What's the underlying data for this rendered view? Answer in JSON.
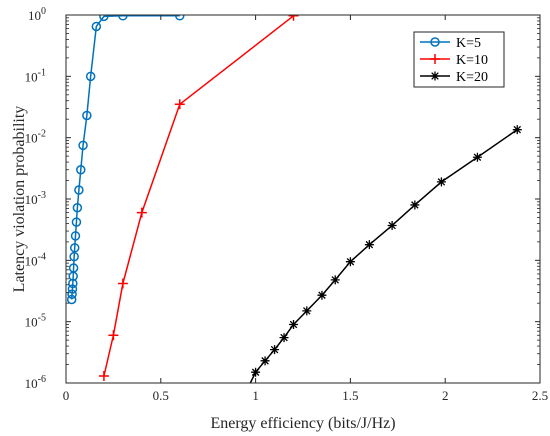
{
  "chart_data": {
    "type": "line",
    "title": "",
    "xlabel": "Energy efficiency (bits/J/Hz)",
    "ylabel": "Latency violation probability",
    "xlim": [
      0,
      2.5
    ],
    "ylim": [
      1e-06,
      1
    ],
    "yscale": "log",
    "grid": false,
    "legend_position": "top-right",
    "x_ticks": [
      {
        "value": 0,
        "label": "0"
      },
      {
        "value": 0.5,
        "label": "0.5"
      },
      {
        "value": 1,
        "label": "1"
      },
      {
        "value": 1.5,
        "label": "1.5"
      },
      {
        "value": 2,
        "label": "2"
      },
      {
        "value": 2.5,
        "label": "2.5"
      }
    ],
    "y_ticks": [
      {
        "value": 1e-06,
        "base": "10",
        "exp": "-6"
      },
      {
        "value": 1e-05,
        "base": "10",
        "exp": "-5"
      },
      {
        "value": 0.0001,
        "base": "10",
        "exp": "-4"
      },
      {
        "value": 0.001,
        "base": "10",
        "exp": "-3"
      },
      {
        "value": 0.01,
        "base": "10",
        "exp": "-2"
      },
      {
        "value": 0.1,
        "base": "10",
        "exp": "-1"
      },
      {
        "value": 1,
        "base": "10",
        "exp": "0"
      }
    ],
    "series": [
      {
        "name": "K=5",
        "color": "#0072BD",
        "marker": "circle",
        "x": [
          0.03,
          0.032,
          0.034,
          0.036,
          0.038,
          0.04,
          0.043,
          0.046,
          0.05,
          0.055,
          0.06,
          0.068,
          0.078,
          0.09,
          0.11,
          0.13,
          0.16,
          0.2,
          0.3,
          0.6
        ],
        "y": [
          2.3e-05,
          2.8e-05,
          3.4e-05,
          4.2e-05,
          5.5e-05,
          7.5e-05,
          0.000115,
          0.00016,
          0.00025,
          0.00042,
          0.00072,
          0.0014,
          0.003,
          0.0075,
          0.023,
          0.1,
          0.65,
          0.95,
          0.97,
          0.97
        ]
      },
      {
        "name": "K=10",
        "color": "#FF0000",
        "marker": "plus",
        "x": [
          0.2,
          0.25,
          0.3,
          0.4,
          0.6,
          1.2
        ],
        "y": [
          1.3e-06,
          6e-06,
          4.2e-05,
          0.0006,
          0.035,
          0.97
        ]
      },
      {
        "name": "K=20",
        "color": "#000000",
        "marker": "star",
        "x": [
          0.9,
          1.0,
          1.05,
          1.1,
          1.15,
          1.2,
          1.27,
          1.35,
          1.42,
          1.5,
          1.6,
          1.72,
          1.84,
          1.98,
          2.17,
          2.38
        ],
        "y": [
          3.5e-07,
          1.5e-06,
          2.3e-06,
          3.5e-06,
          5.5e-06,
          9e-06,
          1.5e-05,
          2.7e-05,
          4.8e-05,
          9.5e-05,
          0.00018,
          0.00037,
          0.0008,
          0.0019,
          0.0048,
          0.0135
        ]
      }
    ]
  }
}
